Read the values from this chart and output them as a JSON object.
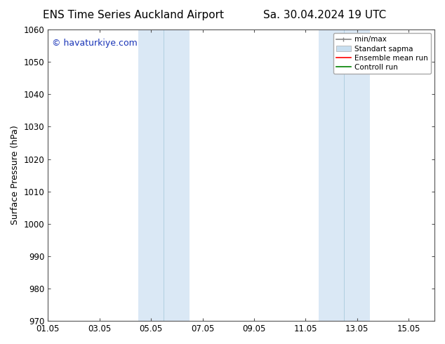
{
  "title_left": "ENS Time Series Auckland Airport",
  "title_right": "Sa. 30.04.2024 19 UTC",
  "ylabel": "Surface Pressure (hPa)",
  "ylim": [
    970,
    1060
  ],
  "yticks": [
    970,
    980,
    990,
    1000,
    1010,
    1020,
    1030,
    1040,
    1050,
    1060
  ],
  "xlim_start": 0,
  "xlim_end": 15,
  "xtick_labels": [
    "01.05",
    "03.05",
    "05.05",
    "07.05",
    "09.05",
    "11.05",
    "13.05",
    "15.05"
  ],
  "xtick_positions": [
    0,
    2,
    4,
    6,
    8,
    10,
    12,
    14
  ],
  "shaded_regions": [
    {
      "xmin": 3.5,
      "xmax": 4.5,
      "color": "#dae8f5"
    },
    {
      "xmin": 4.5,
      "xmax": 5.5,
      "color": "#dae8f5"
    },
    {
      "xmin": 10.5,
      "xmax": 11.5,
      "color": "#dae8f5"
    },
    {
      "xmin": 11.5,
      "xmax": 12.5,
      "color": "#dae8f5"
    }
  ],
  "shaded_dividers": [
    4.5,
    11.5
  ],
  "watermark_text": "© havaturkiye.com",
  "watermark_color": "#1a35b8",
  "legend_labels": [
    "min/max",
    "Standart sapma",
    "Ensemble mean run",
    "Controll run"
  ],
  "legend_minmax_color": "#888888",
  "legend_std_color": "#c8dff0",
  "legend_ens_color": "#ff0000",
  "legend_ctrl_color": "#008000",
  "background_color": "#ffffff",
  "title_fontsize": 11,
  "axis_label_fontsize": 9,
  "tick_fontsize": 8.5,
  "watermark_fontsize": 9
}
